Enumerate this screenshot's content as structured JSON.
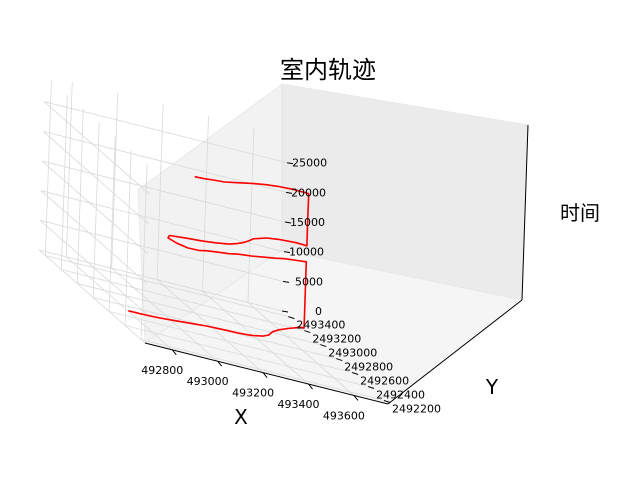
{
  "chart_data": {
    "type": "line",
    "projection": "3d",
    "title": "室内轨迹",
    "xlabel": "X",
    "ylabel": "Y",
    "zlabel": "时间",
    "xticks": [
      "492800",
      "493000",
      "493200",
      "493400",
      "493600"
    ],
    "yticks": [
      "2492200",
      "2492400",
      "2492600",
      "2492800",
      "2493000",
      "2493200",
      "2493400"
    ],
    "zticks": [
      "0",
      "5000",
      "10000",
      "15000",
      "20000",
      "25000"
    ],
    "xlim": [
      492680,
      493750
    ],
    "ylim": [
      2492150,
      2493480
    ],
    "zlim": [
      0,
      29500
    ],
    "grid": true,
    "series": [
      {
        "color": "#ff0000",
        "points": [
          [
            492800,
            2492700,
            100
          ],
          [
            492830,
            2492640,
            600
          ],
          [
            492880,
            2492600,
            1000
          ],
          [
            492930,
            2492560,
            1500
          ],
          [
            492970,
            2492520,
            2000
          ],
          [
            493010,
            2492480,
            2500
          ],
          [
            493050,
            2492440,
            3000
          ],
          [
            493080,
            2492400,
            3400
          ],
          [
            493110,
            2492370,
            3700
          ],
          [
            493160,
            2492350,
            3900
          ],
          [
            493220,
            2492360,
            4000
          ],
          [
            493280,
            2492390,
            4100
          ],
          [
            493320,
            2492430,
            4200
          ],
          [
            493360,
            2492500,
            4300
          ],
          [
            493410,
            2492560,
            4400
          ],
          [
            493470,
            2492620,
            4500
          ],
          [
            493520,
            2492670,
            4500
          ],
          [
            493560,
            2492720,
            4400
          ],
          [
            493580,
            2492730,
            4300
          ],
          [
            493580,
            2492730,
            5000
          ],
          [
            493580,
            2492730,
            8000
          ],
          [
            493580,
            2492730,
            10000
          ],
          [
            493580,
            2492730,
            12000
          ],
          [
            493580,
            2492730,
            14000
          ],
          [
            493580,
            2492730,
            15500
          ],
          [
            493530,
            2492700,
            15600
          ],
          [
            493460,
            2492660,
            15700
          ],
          [
            493400,
            2492610,
            15800
          ],
          [
            493330,
            2492560,
            15900
          ],
          [
            493260,
            2492510,
            16000
          ],
          [
            493190,
            2492470,
            16100
          ],
          [
            493130,
            2492420,
            16200
          ],
          [
            493060,
            2492380,
            16300
          ],
          [
            493000,
            2492340,
            16400
          ],
          [
            492960,
            2492300,
            16500
          ],
          [
            492900,
            2492280,
            16600
          ],
          [
            492860,
            2492310,
            16700
          ],
          [
            492840,
            2492360,
            16800
          ],
          [
            492860,
            2492400,
            16900
          ],
          [
            492940,
            2492420,
            17000
          ],
          [
            493010,
            2492430,
            17100
          ],
          [
            493080,
            2492450,
            17200
          ],
          [
            493150,
            2492480,
            17300
          ],
          [
            493200,
            2492520,
            17400
          ],
          [
            493250,
            2492570,
            17500
          ],
          [
            493290,
            2492620,
            17600
          ],
          [
            493320,
            2492660,
            17700
          ],
          [
            493360,
            2492690,
            17800
          ],
          [
            493400,
            2492720,
            17900
          ],
          [
            493460,
            2492740,
            18000
          ],
          [
            493540,
            2492750,
            18100
          ],
          [
            493580,
            2492730,
            18200
          ],
          [
            493580,
            2492730,
            20000
          ],
          [
            493580,
            2492730,
            23000
          ],
          [
            493580,
            2492730,
            26000
          ],
          [
            493580,
            2492730,
            27000
          ],
          [
            493500,
            2492700,
            27300
          ],
          [
            493420,
            2492660,
            27500
          ],
          [
            493350,
            2492610,
            27700
          ],
          [
            493280,
            2492560,
            27800
          ],
          [
            493220,
            2492510,
            27900
          ],
          [
            493160,
            2492460,
            28000
          ],
          [
            493100,
            2492420,
            28000
          ],
          [
            493040,
            2492390,
            28100
          ],
          [
            492990,
            2492360,
            28200
          ],
          [
            492940,
            2492340,
            28300
          ]
        ]
      }
    ]
  }
}
